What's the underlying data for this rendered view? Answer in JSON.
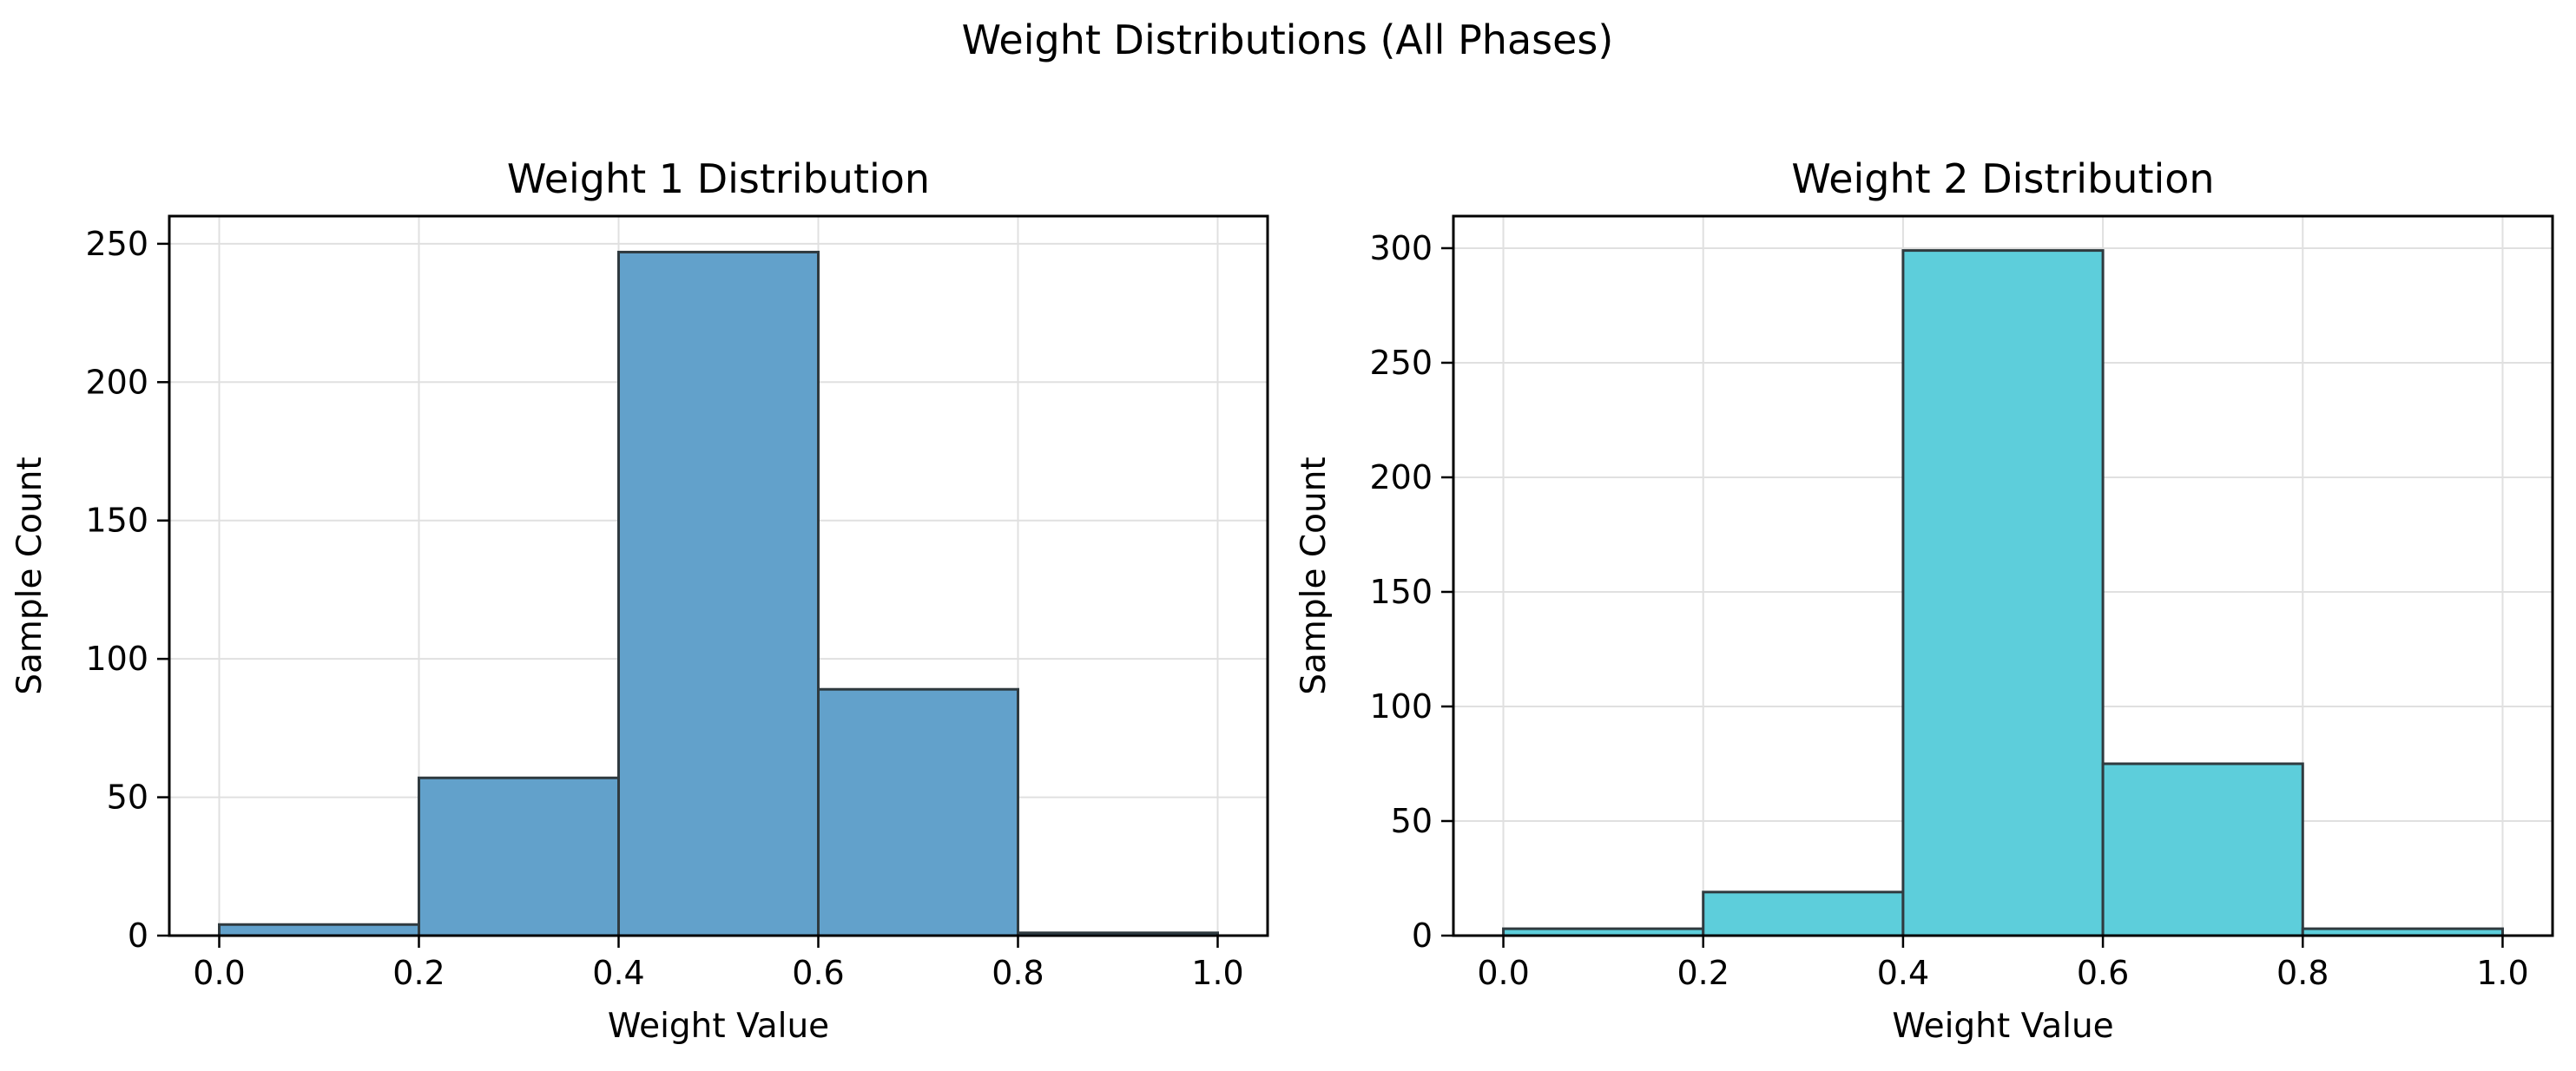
{
  "figure": {
    "suptitle": "Weight Distributions (All Phases)"
  },
  "chart_data": [
    {
      "type": "bar",
      "title": "Weight 1 Distribution",
      "xlabel": "Weight Value",
      "ylabel": "Sample Count",
      "bin_edges": [
        0.0,
        0.2,
        0.4,
        0.6,
        0.8,
        1.0
      ],
      "values": [
        4,
        57,
        247,
        89,
        1
      ],
      "xlim": [
        -0.05,
        1.05
      ],
      "ylim": [
        0,
        260
      ],
      "xticks": [
        0.0,
        0.2,
        0.4,
        0.6,
        0.8,
        1.0
      ],
      "xtick_labels": [
        "0.0",
        "0.2",
        "0.4",
        "0.6",
        "0.8",
        "1.0"
      ],
      "yticks": [
        0,
        50,
        100,
        150,
        200,
        250
      ],
      "ytick_labels": [
        "0",
        "50",
        "100",
        "150",
        "200",
        "250"
      ],
      "grid": true,
      "bar_color": "#62a1cb",
      "edge_color": "#2f3a3f"
    },
    {
      "type": "bar",
      "title": "Weight 2 Distribution",
      "xlabel": "Weight Value",
      "ylabel": "Sample Count",
      "bin_edges": [
        0.0,
        0.2,
        0.4,
        0.6,
        0.8,
        1.0
      ],
      "values": [
        3,
        19,
        299,
        75,
        3
      ],
      "xlim": [
        -0.05,
        1.05
      ],
      "ylim": [
        0,
        314
      ],
      "xticks": [
        0.0,
        0.2,
        0.4,
        0.6,
        0.8,
        1.0
      ],
      "xtick_labels": [
        "0.0",
        "0.2",
        "0.4",
        "0.6",
        "0.8",
        "1.0"
      ],
      "yticks": [
        0,
        50,
        100,
        150,
        200,
        250,
        300
      ],
      "ytick_labels": [
        "0",
        "50",
        "100",
        "150",
        "200",
        "250",
        "300"
      ],
      "grid": true,
      "bar_color": "#5dcedb",
      "edge_color": "#2f3a3f"
    }
  ]
}
